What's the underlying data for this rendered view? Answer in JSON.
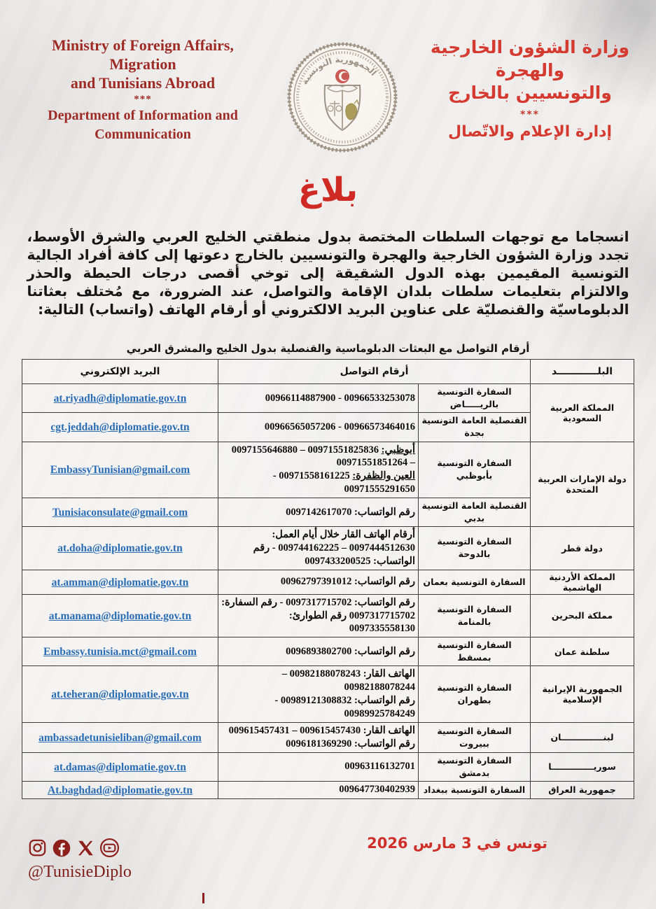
{
  "header": {
    "en_title_lines": [
      "Ministry of Foreign Affairs,",
      "Migration",
      "and Tunisians Abroad"
    ],
    "en_separator": "***",
    "en_dept_lines": [
      "Department of Information and",
      "Communication"
    ],
    "ar_title_lines": [
      "وزارة الشؤون الخارجية",
      "والهجرة",
      "والتونسيين بالخارج"
    ],
    "ar_separator": "***",
    "ar_dept": "إدارة الإعلام والاتّصال",
    "seal": "tunisia-state-seal",
    "seal_ring_text": "الجمهورية التونسية"
  },
  "title": "بلاغ",
  "body_paragraph": "انسجاما مع توجهات السلطات المختصة بدول منطقتي الخليج العربي والشرق الأوسط، تجدد وزارة الشؤون الخارجية والهجرة والتونسيين بالخارج دعوتها إلى كافة أفراد الجالية التونسية  المقيمين بهذه الدول الشقيقة إلى توخي أقصى درجات الحيطة والحذر والالتزام بتعليمات سلطات بلدان الإقامة والتواصل، عند الضرورة، مع مُختلف بعثاتنا الدبلوماسيّة والقنصليّة على عناوين البريد الالكتروني أو أرقام الهاتف (واتساب) التالية:",
  "table": {
    "caption": "أرقام التواصل مع البعثات الدبلوماسية والقنصلية بدول الخليج والمشرق العربي",
    "headers": {
      "country": "البلــــــــــــد",
      "numbers": "أرقام التواصل",
      "email": "البريد الإلكتروني"
    },
    "rows": [
      {
        "country": "المملكة العربية السعودية",
        "country_rowspan": 2,
        "mission": "السفارة التونسية بالريـــــاض",
        "numbers": [
          {
            "t": "00966533253078 - 00966114887900"
          }
        ],
        "email": "at.riyadh@diplomatie.gov.tn"
      },
      {
        "mission": "القنصلية العامة التونسية بجدة",
        "numbers": [
          {
            "t": "00966573464016 - 00966565057206"
          }
        ],
        "email": "cgt.jeddah@diplomatie.gov.tn"
      },
      {
        "country": "دولة الإمارات العربية المتحدة",
        "country_rowspan": 2,
        "mission": "السفارة التونسية بأبوظبي",
        "numbers": [
          {
            "u": "أبوظبي:",
            "t": " 00971551825836 – 0097155646880"
          },
          {
            "t": "– 00971551851264"
          },
          {
            "u": "العين والظفرة:",
            "t": " 00971558161225 -"
          },
          {
            "t": "00971555291650"
          }
        ],
        "email": "EmbassyTunisian@gmail.com"
      },
      {
        "mission": "القنصلية العامة التونسية بدبي",
        "numbers": [
          {
            "t": "رقم الواتساب: 0097142617070"
          }
        ],
        "email": "Tunisiaconsulate@gmail.com"
      },
      {
        "country": "دولة قطر",
        "mission": "السفارة التونسية بالدوحة",
        "numbers": [
          {
            "t": "أرقام الهاتف القار خلال أيام العمل: 0097444512630 – 009744162225 - رقم الواتساب: 0097433200525"
          }
        ],
        "email": "at.doha@diplomatie.gov.tn"
      },
      {
        "country": "المملكة الأردنية الهاشمية",
        "mission": "السفارة التونسية بعمان",
        "numbers": [
          {
            "t": "رقم الواتساب: 00962797391012"
          }
        ],
        "email": "at.amman@diplomatie.gov.tn"
      },
      {
        "country": "مملكة البحرين",
        "mission": "السفارة التونسية بالمنامة",
        "numbers": [
          {
            "t": "رقم الواتساب: 0097317715702 - رقم السفارة: 0097317715702 رقم الطوارئ: 0097335558130"
          }
        ],
        "email": "at.manama@diplomatie.gov.tn"
      },
      {
        "country": "سلطنة عمان",
        "mission": "السفارة التونسية بمسقط",
        "numbers": [
          {
            "t": "رقم الواتساب: 0096893802700"
          }
        ],
        "email": "Embassy.tunisia.mct@gmail.com"
      },
      {
        "country": "الجمهورية الإيرانية الإسلامية",
        "mission": "السفارة التونسية بطهران",
        "numbers": [
          {
            "t": "الهاتف القار: 00982188078243 –"
          },
          {
            "t": "00982188078244"
          },
          {
            "t": "رقم الواتساب: 00989121308832 -"
          },
          {
            "t": "00989925784249"
          }
        ],
        "email": "at.teheran@diplomatie.gov.tn"
      },
      {
        "country": "لبنــــــــــــــان",
        "mission": "السفارة التونسية ببيروت",
        "numbers": [
          {
            "t": "الهاتف القار: 009615457430 – 009615457431"
          },
          {
            "t": "رقم الواتساب: 0096181369290"
          }
        ],
        "email": "ambassadetunisieliban@gmail.com"
      },
      {
        "country": "سوريــــــــــــــا",
        "mission": "السفارة التونسية بدمشق",
        "numbers": [
          {
            "t": "00963116132701"
          }
        ],
        "email": "at.damas@diplomatie.gov.tn"
      },
      {
        "country": "جمهورية العراق",
        "mission": "السفارة التونسية ببغداد",
        "numbers": [
          {
            "t": "009647730402939"
          }
        ],
        "email": "At.baghdad@diplomatie.gov.tn"
      }
    ]
  },
  "footer": {
    "date": "تونس في 3 مارس 2026",
    "handle": "@TunisieDiplo",
    "social_icons": [
      "instagram-icon",
      "facebook-icon",
      "x-icon",
      "youtube-icon"
    ]
  },
  "colors": {
    "red_title": "#cf2b24",
    "red_ar_header": "#d43a30",
    "dark_red_en_header": "#9e2b25",
    "email_blue": "#2a6db5",
    "social_red": "#8e201c",
    "text": "#161616"
  }
}
